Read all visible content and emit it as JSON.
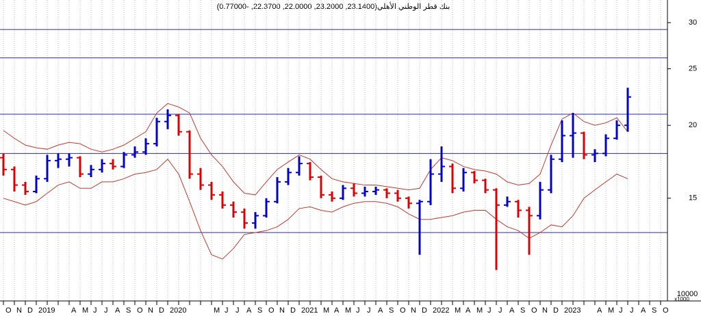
{
  "chart_data": {
    "type": "ohlc",
    "title": "بنك قطر الوطني الأهلي(23.1400, 23.2000, 22.0000, 22.3700, -0.77000)",
    "categories": [
      "O",
      "N",
      "D",
      "2019",
      null,
      null,
      "A",
      "M",
      "J",
      "J",
      "A",
      "S",
      "O",
      "N",
      "D",
      "2020",
      null,
      null,
      null,
      "M",
      "J",
      "J",
      "A",
      "S",
      "O",
      "N",
      "D",
      "2021",
      null,
      "M",
      "A",
      "M",
      "J",
      "J",
      "A",
      "S",
      "O",
      "N",
      "D",
      "2022",
      null,
      "M",
      "A",
      "M",
      "J",
      "J",
      "A",
      "S",
      "O",
      "N",
      "D",
      "2023",
      null,
      null,
      "A",
      "M",
      "J",
      "J",
      "A",
      "S",
      "O"
    ],
    "open": [
      17.6,
      16.8,
      15.8,
      15.4,
      16.2,
      17.4,
      17.5,
      17.6,
      16.5,
      16.8,
      17.2,
      17.0,
      17.8,
      18.0,
      18.6,
      20.3,
      20.8,
      19.5,
      16.5,
      15.8,
      15.2,
      14.6,
      14.2,
      13.6,
      14.0,
      14.8,
      16.0,
      16.6,
      17.2,
      16.3,
      15.2,
      15.0,
      15.6,
      15.3,
      15.4,
      15.5,
      15.3,
      15.0,
      14.7,
      14.8,
      16.5,
      17.0,
      15.6,
      16.6,
      16.1,
      15.5,
      14.6,
      14.8,
      14.3,
      14.0,
      15.5,
      17.5,
      19.2,
      19.4,
      17.8,
      17.9,
      19.0,
      20.0,
      null,
      null,
      null
    ],
    "high": [
      17.9,
      17.0,
      16.0,
      16.4,
      17.8,
      17.9,
      17.9,
      17.7,
      17.1,
      17.5,
      17.5,
      18.0,
      18.4,
      19.0,
      20.6,
      21.3,
      20.9,
      19.6,
      16.9,
      16.0,
      15.4,
      14.8,
      14.4,
      14.2,
      15.0,
      16.3,
      16.9,
      17.7,
      17.3,
      16.4,
      15.4,
      15.8,
      15.9,
      15.7,
      15.7,
      15.6,
      15.5,
      15.1,
      14.9,
      17.5,
      18.4,
      17.2,
      16.9,
      16.7,
      16.2,
      15.6,
      15.1,
      14.9,
      14.5,
      16.0,
      17.8,
      20.4,
      21.0,
      19.5,
      18.2,
      19.3,
      20.4,
      23.2,
      null,
      null,
      null
    ],
    "low": [
      16.4,
      15.4,
      15.2,
      15.3,
      16.0,
      16.9,
      17.0,
      16.3,
      16.3,
      16.6,
      16.8,
      16.9,
      17.6,
      17.8,
      18.4,
      19.7,
      19.2,
      16.2,
      15.5,
      14.9,
      14.4,
      13.9,
      13.3,
      13.3,
      13.9,
      14.7,
      15.8,
      16.4,
      16.1,
      15.0,
      14.8,
      14.9,
      15.1,
      15.1,
      15.2,
      15.0,
      14.8,
      14.4,
      12.0,
      14.6,
      16.0,
      15.3,
      15.4,
      15.9,
      15.3,
      11.3,
      14.5,
      13.9,
      12.0,
      13.8,
      15.3,
      17.3,
      17.6,
      17.5,
      17.3,
      17.7,
      18.9,
      19.5,
      null,
      null,
      null
    ],
    "close": [
      16.8,
      15.8,
      15.4,
      16.2,
      17.4,
      17.5,
      17.6,
      16.5,
      16.8,
      17.2,
      17.0,
      17.8,
      18.0,
      18.6,
      20.3,
      20.8,
      19.5,
      16.5,
      15.8,
      15.2,
      14.6,
      14.2,
      13.6,
      14.0,
      14.8,
      16.0,
      16.6,
      17.2,
      16.3,
      15.2,
      15.0,
      15.6,
      15.3,
      15.4,
      15.5,
      15.3,
      15.0,
      14.7,
      14.8,
      16.5,
      17.0,
      15.6,
      16.6,
      16.1,
      15.5,
      14.6,
      14.8,
      14.3,
      14.0,
      15.5,
      17.5,
      19.2,
      19.4,
      17.8,
      17.9,
      19.0,
      20.0,
      22.37,
      null,
      null,
      null
    ],
    "up_color": "#0000cc",
    "down_color": "#dd0000",
    "bands": [
      {
        "values": [
          19.6,
          19.0,
          18.5,
          18.3,
          18.2,
          18.5,
          18.7,
          18.6,
          18.2,
          18.0,
          18.2,
          18.5,
          19.0,
          19.5,
          21.0,
          21.8,
          21.5,
          21.0,
          19.0,
          17.8,
          17.0,
          16.0,
          15.3,
          15.2,
          16.0,
          16.8,
          17.3,
          17.8,
          17.5,
          16.8,
          16.2,
          16.0,
          15.9,
          15.8,
          15.8,
          15.7,
          15.6,
          15.5,
          15.6,
          16.8,
          17.6,
          17.4,
          17.0,
          16.8,
          16.7,
          16.5,
          16.0,
          15.8,
          15.9,
          16.5,
          18.5,
          20.5,
          21.0,
          20.3,
          20.0,
          20.2,
          20.6,
          19.5,
          null,
          null,
          null
        ],
        "color": "#c0392b"
      },
      {
        "values": [
          15.0,
          14.8,
          14.6,
          14.8,
          15.3,
          15.8,
          16.0,
          15.6,
          15.6,
          16.0,
          16.0,
          16.2,
          16.5,
          16.6,
          16.8,
          17.5,
          16.5,
          14.8,
          13.2,
          12.0,
          11.8,
          12.3,
          13.0,
          13.1,
          13.2,
          13.4,
          13.8,
          14.4,
          14.5,
          14.3,
          14.2,
          14.5,
          14.7,
          14.8,
          14.8,
          14.7,
          14.5,
          14.1,
          13.8,
          13.8,
          13.9,
          14.0,
          14.2,
          14.3,
          14.3,
          13.8,
          13.4,
          13.2,
          12.8,
          13.1,
          13.5,
          13.4,
          14.0,
          15.0,
          15.5,
          16.0,
          16.5,
          16.2,
          null,
          null,
          null
        ],
        "color": "#c0392b"
      }
    ],
    "hlines": [
      29.2,
      26.1,
      20.9,
      17.9,
      13.1
    ],
    "hline_color": "#2b2b9c",
    "log_scale": true,
    "ylim": [
      10,
      32.8
    ],
    "yticks": [
      15,
      20,
      25,
      30
    ],
    "grid": true,
    "volume_tick": "10000",
    "volume_unit": "x1000"
  }
}
